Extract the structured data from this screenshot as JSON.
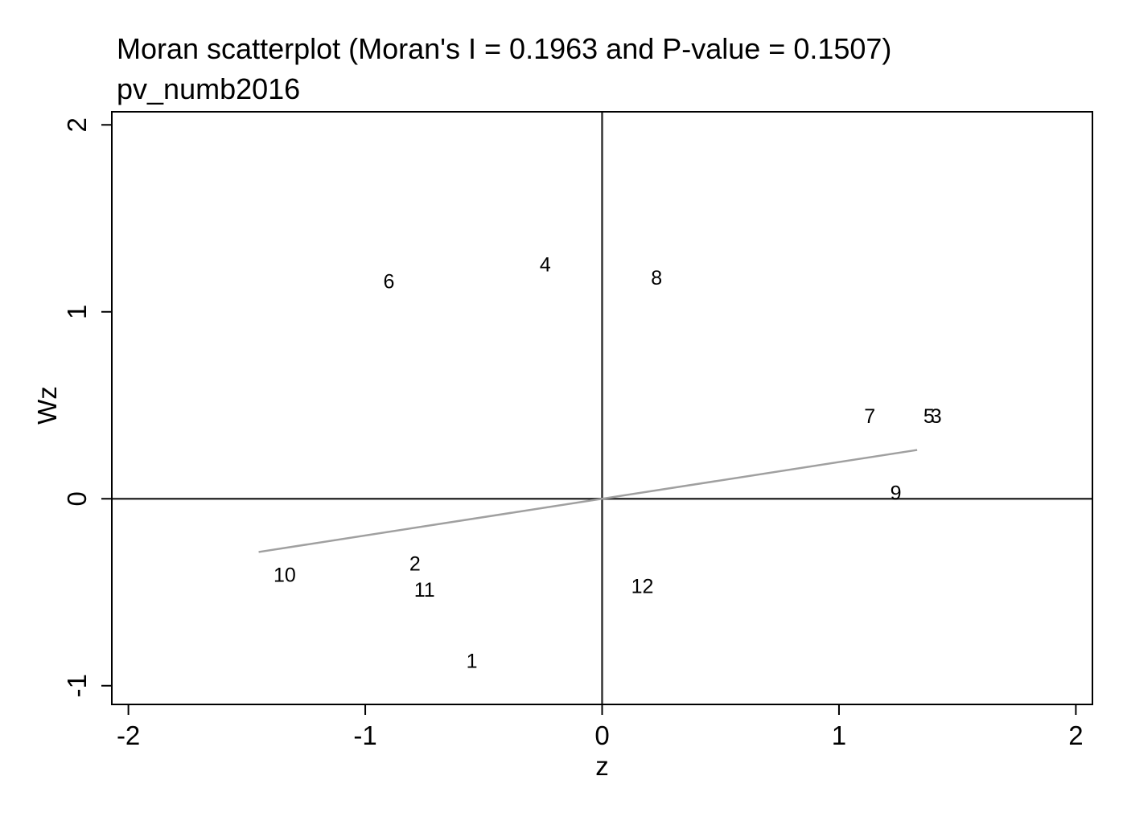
{
  "chart_data": {
    "type": "scatter",
    "title": "Moran scatterplot (Moran's I = 0.1963 and P-value = 0.1507)",
    "subtitle": "pv_numb2016",
    "xlabel": "z",
    "ylabel": "Wz",
    "xlim": [
      -2.07,
      2.07
    ],
    "ylim": [
      -1.1,
      2.07
    ],
    "xticks": [
      -2,
      -1,
      0,
      1,
      2
    ],
    "xtick_labels": [
      "-2",
      "-1",
      "0",
      "1",
      "2"
    ],
    "yticks": [
      -1,
      0,
      1,
      2
    ],
    "ytick_labels": [
      "-1",
      "0",
      "1",
      "2"
    ],
    "grid": false,
    "reference_lines": {
      "x": 0,
      "y": 0
    },
    "points": [
      {
        "label": "1",
        "x": -0.55,
        "y": -0.87
      },
      {
        "label": "2",
        "x": -0.79,
        "y": -0.35
      },
      {
        "label": "3",
        "x": 1.41,
        "y": 0.44
      },
      {
        "label": "4",
        "x": -0.24,
        "y": 1.25
      },
      {
        "label": "5",
        "x": 1.38,
        "y": 0.44
      },
      {
        "label": "6",
        "x": -0.9,
        "y": 1.16
      },
      {
        "label": "7",
        "x": 1.13,
        "y": 0.44
      },
      {
        "label": "8",
        "x": 0.23,
        "y": 1.18
      },
      {
        "label": "9",
        "x": 1.24,
        "y": 0.03
      },
      {
        "label": "10",
        "x": -1.34,
        "y": -0.41
      },
      {
        "label": "11",
        "x": -0.75,
        "y": -0.49
      },
      {
        "label": "12",
        "x": 0.17,
        "y": -0.47
      }
    ],
    "fit_line": {
      "slope": 0.1963,
      "x_range": [
        -1.45,
        1.33
      ]
    },
    "colors": {
      "axis": "#000000",
      "reference": "#333333",
      "fit": "#a0a0a0",
      "marker_text": "#000000"
    }
  }
}
